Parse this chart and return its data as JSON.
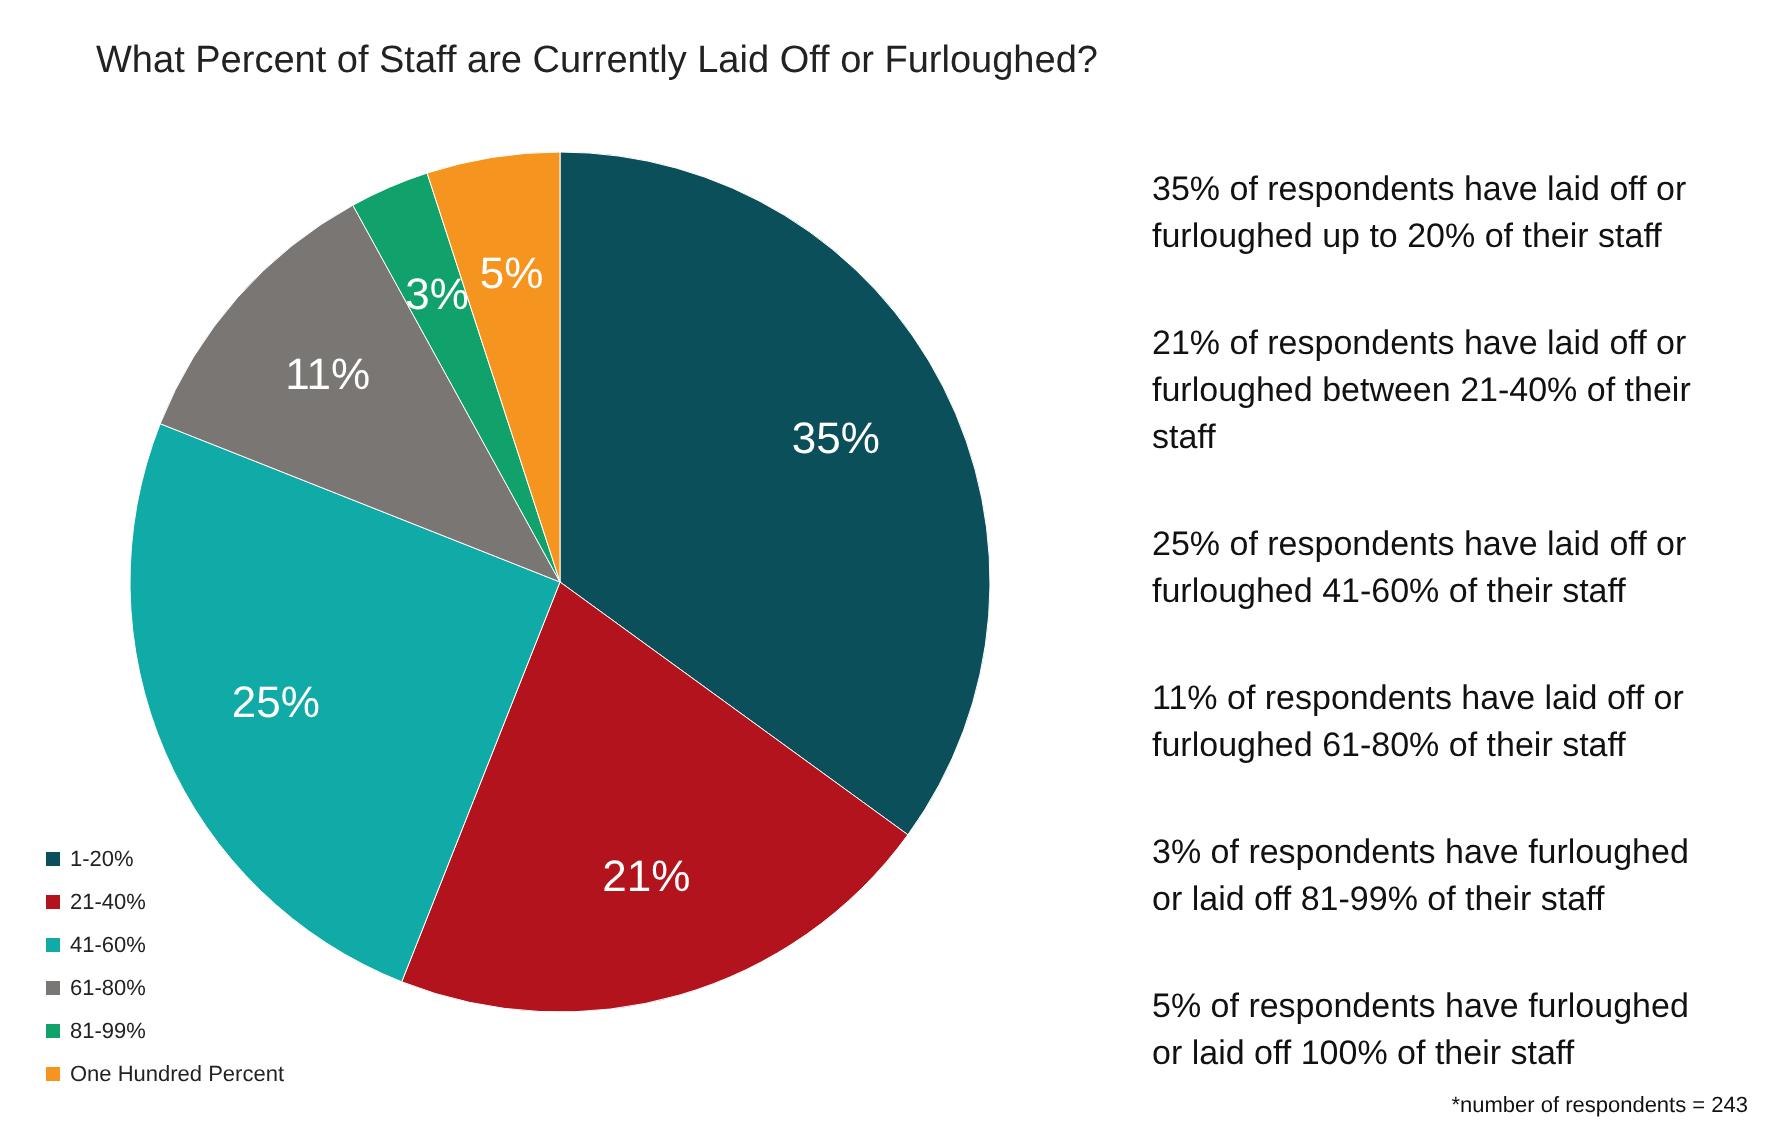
{
  "chart_data": {
    "type": "pie",
    "title": "What Percent of Staff are Currently Laid Off or Furloughed?",
    "categories": [
      "1-20%",
      "21-40%",
      "41-60%",
      "61-80%",
      "81-99%",
      "One Hundred Percent"
    ],
    "values": [
      35,
      21,
      25,
      11,
      3,
      5
    ],
    "colors": [
      "#0b4f5b",
      "#b3131c",
      "#10aaa7",
      "#797674",
      "#11a26c",
      "#f5951f"
    ],
    "value_labels": [
      "35%",
      "21%",
      "25%",
      "11%",
      "3%",
      "5%"
    ],
    "legend": "bottom left",
    "annotations": [
      "35% of respondents have laid off or furloughed up to 20% of their staff",
      "21% of respondents have laid off or furloughed between 21-40% of their staff",
      "25% of respondents have laid off or furloughed 41-60% of their staff",
      "11% of respondents have laid off or furloughed 61-80% of their staff",
      "3% of respondents have furloughed or laid off 81-99% of their staff",
      "5% of respondents have furloughed or laid off 100% of their staff",
      "*number of respondents = 243"
    ]
  }
}
